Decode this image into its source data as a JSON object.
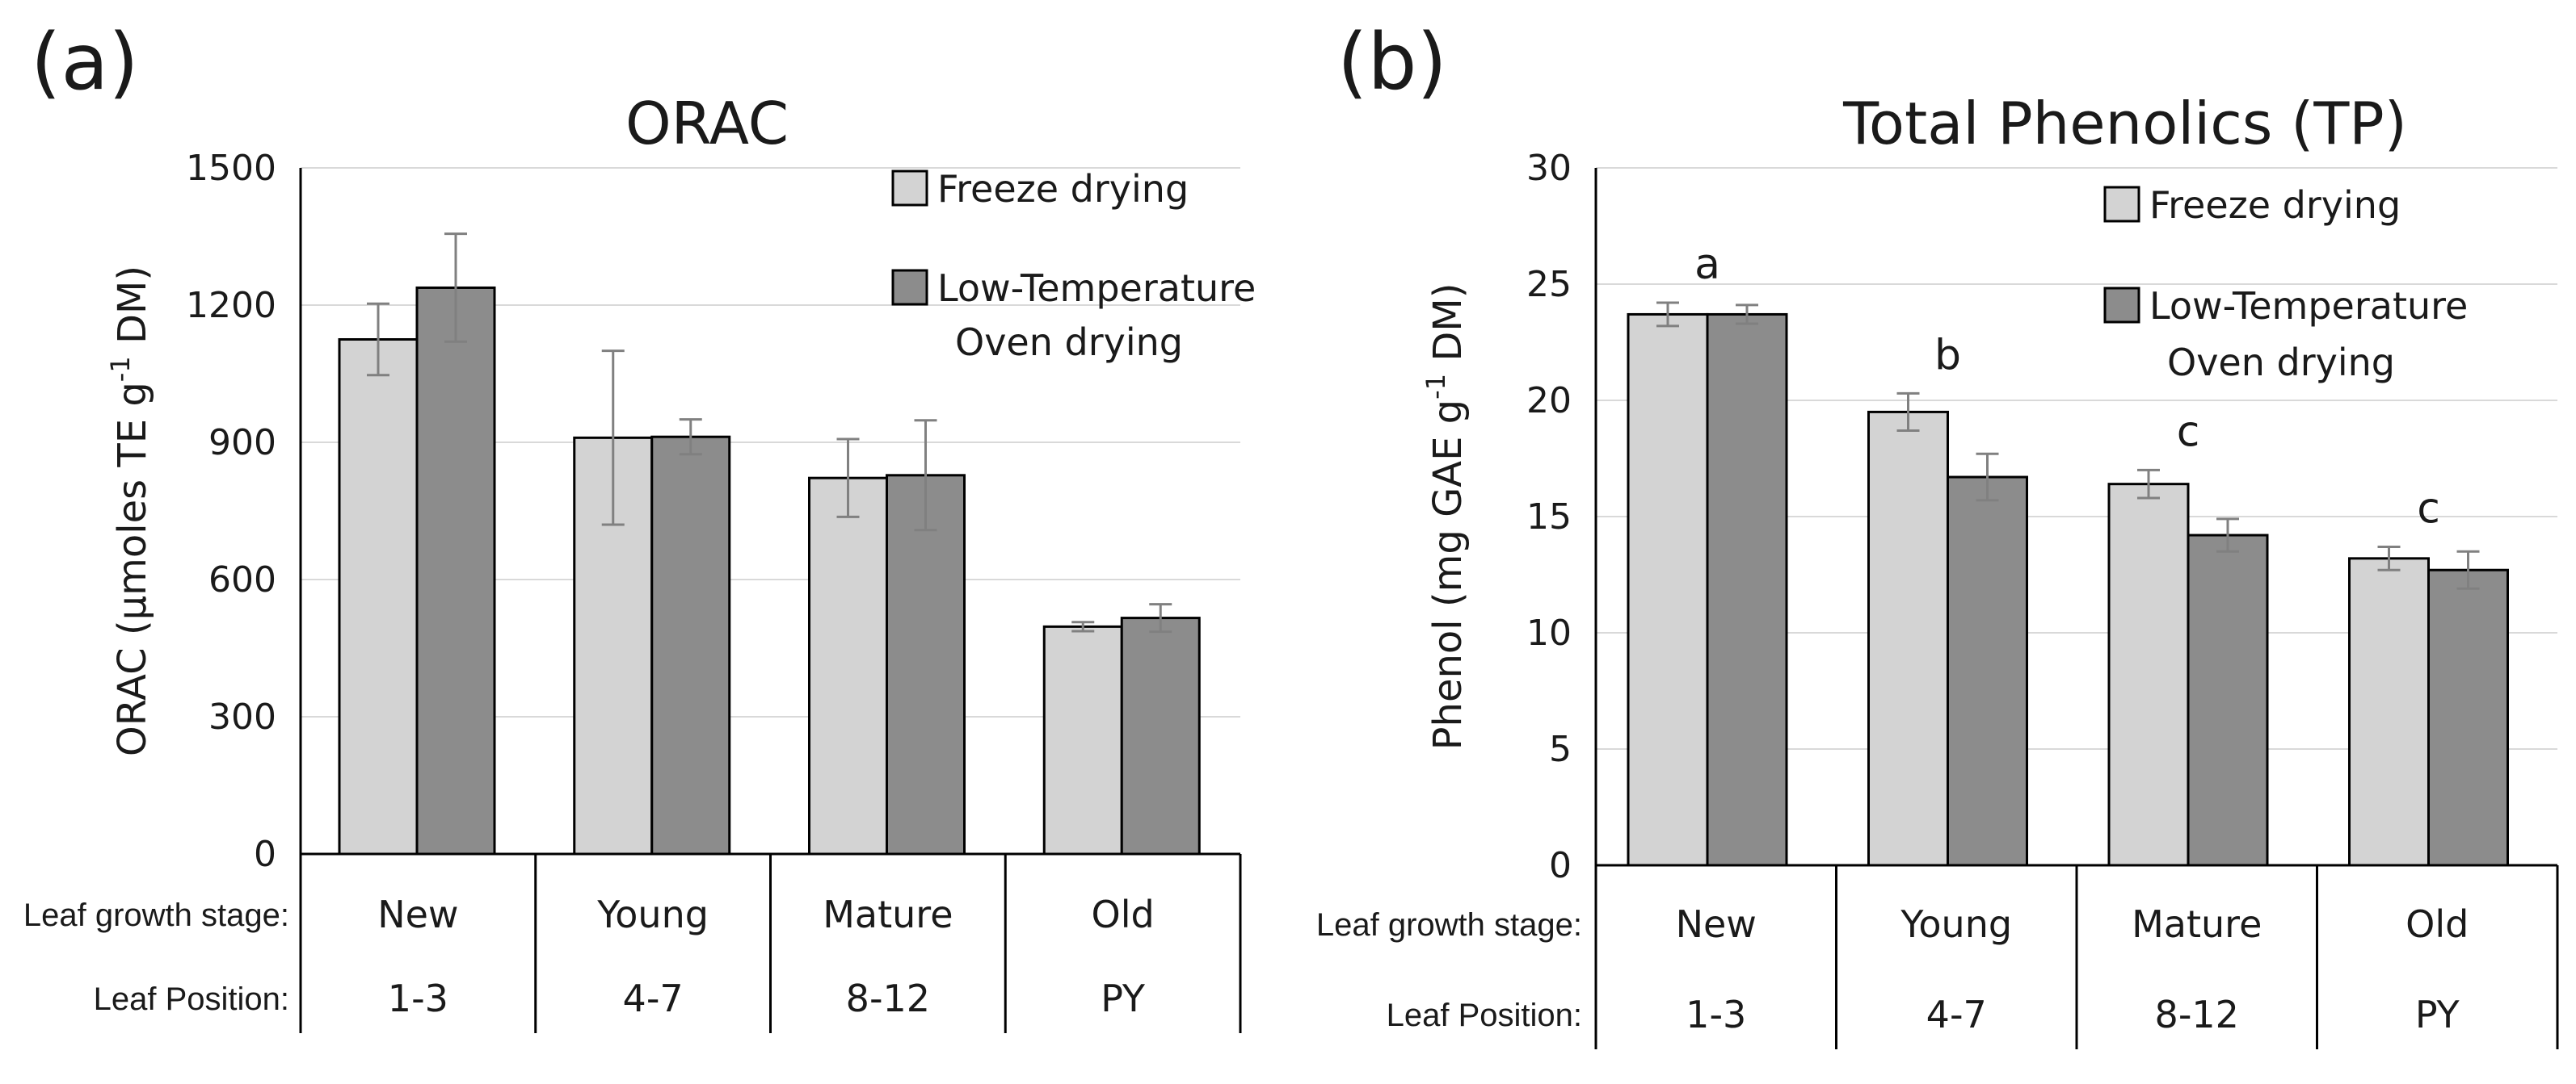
{
  "chart_data": [
    {
      "panel": "(a)",
      "type": "bar",
      "title": "ORAC",
      "ylabel_parts": [
        "ORAC (µmoles TE g",
        "-1",
        " DM)"
      ],
      "ylim": [
        0,
        1500
      ],
      "yticks": [
        0,
        300,
        600,
        900,
        1200,
        1500
      ],
      "categories": [
        "New",
        "Young",
        "Mature",
        "Old"
      ],
      "positions": [
        "1-3",
        "4-7",
        "8-12",
        "PY"
      ],
      "row_labels": {
        "stage": "Leaf growth stage:",
        "position": "Leaf Position:"
      },
      "legend": [
        {
          "name": "Freeze drying",
          "lines": [
            "Freeze drying"
          ]
        },
        {
          "name": "Low-Temperature Oven drying",
          "lines": [
            "Low-Temperature",
            "Oven drying"
          ]
        }
      ],
      "series": [
        {
          "name": "Freeze drying",
          "values": [
            1125,
            910,
            822,
            497
          ],
          "errors": [
            78,
            190,
            85,
            10
          ]
        },
        {
          "name": "Low-Temperature Oven drying",
          "values": [
            1238,
            912,
            828,
            516
          ],
          "errors": [
            118,
            38,
            120,
            30
          ]
        }
      ],
      "annotations": []
    },
    {
      "panel": "(b)",
      "type": "bar",
      "title": "Total Phenolics (TP)",
      "ylabel_parts": [
        "Phenol (mg GAE g",
        "-1",
        " DM)"
      ],
      "ylim": [
        0,
        30
      ],
      "yticks": [
        0,
        5,
        10,
        15,
        20,
        25,
        30
      ],
      "categories": [
        "New",
        "Young",
        "Mature",
        "Old"
      ],
      "positions": [
        "1-3",
        "4-7",
        "8-12",
        "PY"
      ],
      "row_labels": {
        "stage": "Leaf growth stage:",
        "position": "Leaf Position:"
      },
      "legend": [
        {
          "name": "Freeze drying",
          "lines": [
            "Freeze drying"
          ]
        },
        {
          "name": "Low-Temperature Oven drying",
          "lines": [
            "Low-Temperature",
            "Oven drying"
          ]
        }
      ],
      "series": [
        {
          "name": "Freeze drying",
          "values": [
            23.7,
            19.5,
            16.4,
            13.2
          ],
          "errors": [
            0.5,
            0.8,
            0.6,
            0.5
          ]
        },
        {
          "name": "Low-Temperature Oven drying",
          "values": [
            23.7,
            16.7,
            14.2,
            12.7
          ],
          "errors": [
            0.4,
            1.0,
            0.7,
            0.8
          ]
        }
      ],
      "annotations": [
        "a",
        "b",
        "c",
        "c"
      ]
    }
  ],
  "colors": {
    "freeze": "#d3d3d3",
    "oven": "#8c8c8c",
    "bar_stroke": "#000000",
    "error_bar": "#808080",
    "grid": "#d9d9d9",
    "axis": "#000000"
  }
}
